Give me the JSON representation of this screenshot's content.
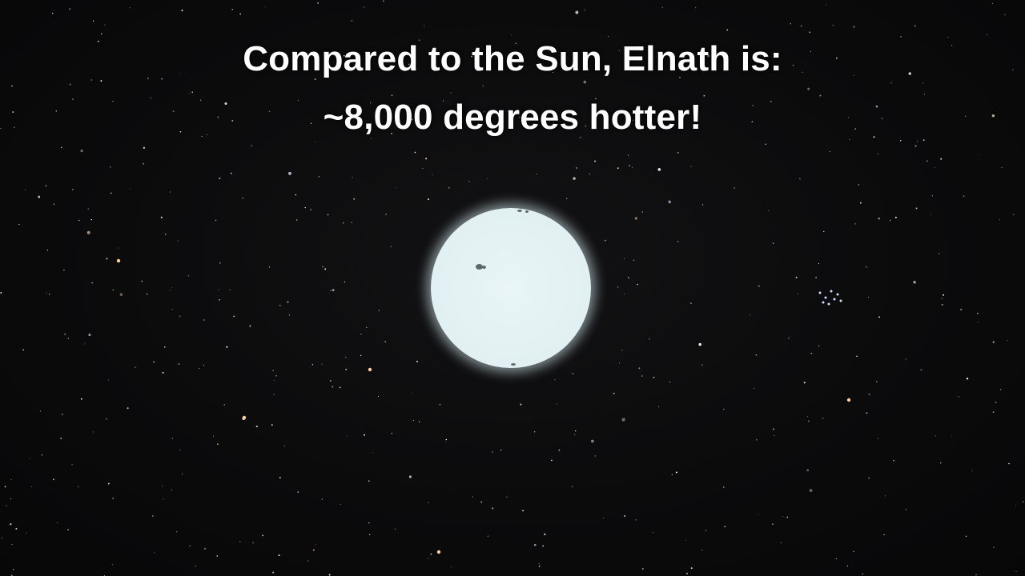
{
  "caption": {
    "line1": "Compared to the Sun, Elnath is:",
    "line2": "~8,000 degrees hotter!"
  },
  "scene": {
    "background_color": "#0a0a0b",
    "star_color": "#e4f2f4",
    "text_color": "#ffffff"
  }
}
